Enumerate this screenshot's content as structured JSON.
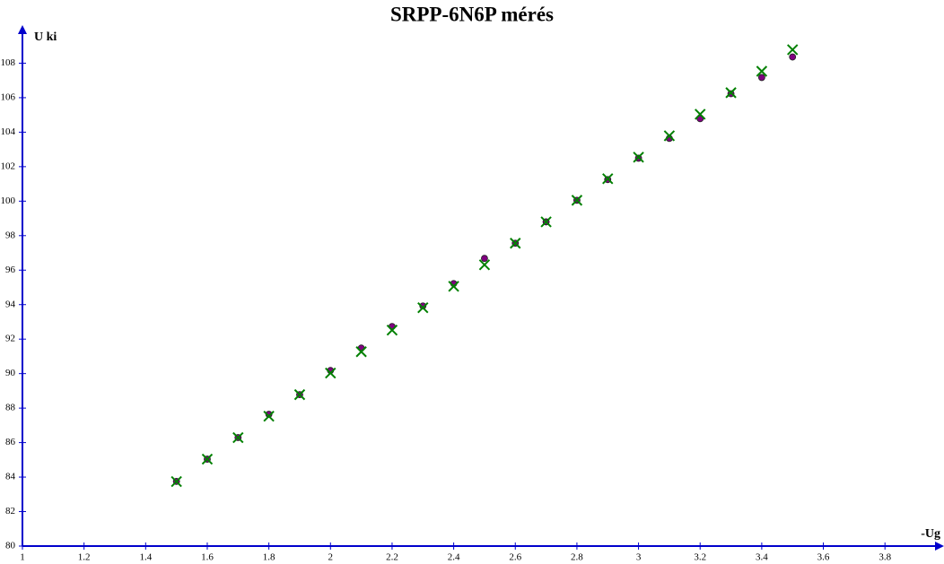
{
  "chart_data": {
    "type": "scatter",
    "title": "SRPP-6N6P mérés",
    "x_label": "-Ug",
    "y_label": "U ki",
    "x": [
      1.5,
      1.6,
      1.7,
      1.8,
      1.9,
      2.0,
      2.1,
      2.2,
      2.3,
      2.4,
      2.5,
      2.6,
      2.7,
      2.8,
      2.9,
      3.0,
      3.1,
      3.2,
      3.3,
      3.4,
      3.5
    ],
    "series": [
      {
        "color": "#800080",
        "marker": "dot",
        "values": [
          83.75,
          85.04,
          86.29,
          87.64,
          88.78,
          90.18,
          91.48,
          92.73,
          93.92,
          95.22,
          96.68,
          97.56,
          98.8,
          100.05,
          101.25,
          102.49,
          103.64,
          104.78,
          106.23,
          107.17,
          108.36
        ]
      },
      {
        "color": "#008000",
        "marker": "x",
        "values": [
          83.74,
          85.04,
          86.29,
          87.53,
          88.78,
          90.03,
          91.27,
          92.52,
          93.82,
          95.06,
          96.31,
          97.56,
          98.8,
          100.05,
          101.3,
          102.55,
          103.79,
          105.04,
          106.29,
          107.53,
          108.78
        ]
      }
    ],
    "xlim": [
      1,
      3.98
    ],
    "ylim": [
      80,
      110
    ],
    "xticks": [
      1,
      1.2,
      1.4,
      1.6,
      1.8,
      2,
      2.2,
      2.4,
      2.6,
      2.8,
      3,
      3.2,
      3.4,
      3.6,
      3.8
    ],
    "yticks": [
      80,
      82,
      84,
      86,
      88,
      90,
      92,
      94,
      96,
      98,
      100,
      102,
      104,
      106,
      108
    ],
    "axis_color": "#0000cc"
  }
}
